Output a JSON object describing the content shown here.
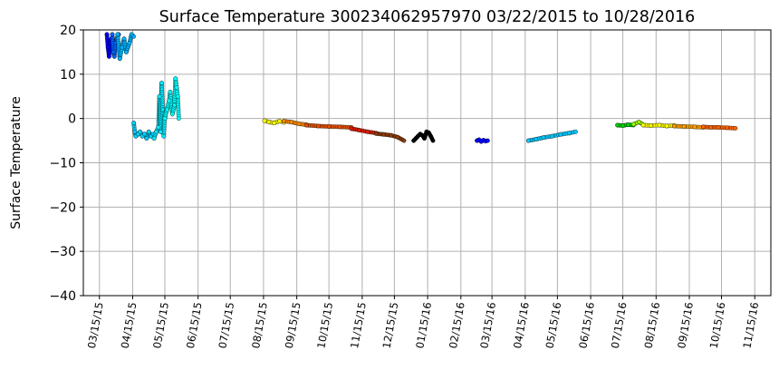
{
  "chart_data": {
    "type": "scatter",
    "title": "Surface Temperature 300234062957970  03/22/2015 to 10/28/2016",
    "xlabel": "",
    "ylabel": "Surface Temperature",
    "xlim": [
      "2015-02-28",
      "2016-11-30"
    ],
    "ylim": [
      -40,
      20
    ],
    "yticks": [
      20,
      10,
      0,
      -10,
      -20,
      -30,
      -40
    ],
    "ytick_labels": [
      "20",
      "10",
      "0",
      "−10",
      "−20",
      "−30",
      "−40"
    ],
    "xticks": [
      "2015-03-15",
      "2015-04-15",
      "2015-05-15",
      "2015-06-15",
      "2015-07-15",
      "2015-08-15",
      "2015-09-15",
      "2015-10-15",
      "2015-11-15",
      "2015-12-15",
      "2016-01-15",
      "2016-02-15",
      "2016-03-15",
      "2016-04-15",
      "2016-05-15",
      "2016-06-15",
      "2016-07-15",
      "2016-08-15",
      "2016-09-15",
      "2016-10-15",
      "2016-11-15"
    ],
    "xtick_labels": [
      "03/15/15",
      "04/15/15",
      "05/15/15",
      "06/15/15",
      "07/15/15",
      "08/15/15",
      "09/15/15",
      "10/15/15",
      "11/15/15",
      "12/15/15",
      "01/15/16",
      "02/15/16",
      "03/15/16",
      "04/15/16",
      "05/15/16",
      "06/15/16",
      "07/15/16",
      "08/15/16",
      "09/15/16",
      "10/15/16",
      "11/15/16"
    ],
    "grid": true,
    "series": [
      {
        "color": "#0000ff",
        "points": [
          [
            "2015-03-22",
            19
          ],
          [
            "2015-03-23",
            16
          ],
          [
            "2015-03-24",
            14
          ],
          [
            "2015-03-25",
            17
          ],
          [
            "2015-03-26",
            18
          ]
        ]
      },
      {
        "color": "#0064ff",
        "points": [
          [
            "2015-03-27",
            19
          ],
          [
            "2015-03-28",
            15
          ],
          [
            "2015-03-29",
            14
          ],
          [
            "2015-03-30",
            17
          ],
          [
            "2015-03-31",
            18
          ],
          [
            "2015-04-02",
            19
          ]
        ]
      },
      {
        "color": "#00b4ff",
        "points": [
          [
            "2015-04-01",
            19
          ],
          [
            "2015-04-03",
            13.5
          ],
          [
            "2015-04-05",
            16
          ],
          [
            "2015-04-07",
            18
          ],
          [
            "2015-04-09",
            15
          ],
          [
            "2015-04-12",
            17
          ],
          [
            "2015-04-14",
            19
          ],
          [
            "2015-04-16",
            18.5
          ]
        ]
      },
      {
        "color": "#00d2ff",
        "points": [
          [
            "2015-04-16",
            -1
          ],
          [
            "2015-04-17",
            -3
          ],
          [
            "2015-04-18",
            -4
          ],
          [
            "2015-04-20",
            -3.5
          ],
          [
            "2015-04-22",
            -3
          ],
          [
            "2015-04-24",
            -4
          ],
          [
            "2015-04-26",
            -3.5
          ],
          [
            "2015-04-28",
            -4.5
          ],
          [
            "2015-04-30",
            -3
          ],
          [
            "2015-05-02",
            -4
          ],
          [
            "2015-05-04",
            -3.5
          ]
        ]
      },
      {
        "color": "#00eaff",
        "points": [
          [
            "2015-05-05",
            -4.5
          ],
          [
            "2015-05-07",
            -3
          ],
          [
            "2015-05-09",
            -2
          ],
          [
            "2015-05-10",
            5
          ],
          [
            "2015-05-11",
            -3
          ],
          [
            "2015-05-12",
            8
          ],
          [
            "2015-05-13",
            2
          ],
          [
            "2015-05-14",
            -4
          ],
          [
            "2015-05-15",
            1
          ]
        ]
      },
      {
        "color": "#00ffff",
        "points": [
          [
            "2015-05-15",
            0
          ],
          [
            "2015-05-17",
            2
          ],
          [
            "2015-05-19",
            4
          ],
          [
            "2015-05-20",
            6
          ],
          [
            "2015-05-22",
            1
          ],
          [
            "2015-05-24",
            3
          ],
          [
            "2015-05-25",
            9
          ],
          [
            "2015-05-26",
            7
          ],
          [
            "2015-05-27",
            5
          ],
          [
            "2015-05-28",
            0
          ]
        ]
      },
      {
        "color": "#ffff00",
        "points": [
          [
            "2015-08-16",
            -0.5
          ],
          [
            "2015-08-20",
            -0.8
          ],
          [
            "2015-08-25",
            -1
          ],
          [
            "2015-08-30",
            -0.6
          ],
          [
            "2015-09-03",
            -0.9
          ]
        ]
      },
      {
        "color": "#ff8c00",
        "points": [
          [
            "2015-09-03",
            -0.6
          ],
          [
            "2015-09-10",
            -0.8
          ],
          [
            "2015-09-17",
            -1.2
          ],
          [
            "2015-09-24",
            -1.4
          ]
        ]
      },
      {
        "color": "#e65000",
        "points": [
          [
            "2015-09-24",
            -1.5
          ],
          [
            "2015-10-05",
            -1.7
          ],
          [
            "2015-10-15",
            -1.8
          ],
          [
            "2015-10-25",
            -1.9
          ],
          [
            "2015-11-05",
            -2
          ]
        ]
      },
      {
        "color": "#dc1e00",
        "points": [
          [
            "2015-11-05",
            -2.3
          ],
          [
            "2015-11-12",
            -2.6
          ],
          [
            "2015-11-20",
            -3
          ],
          [
            "2015-11-28",
            -3.3
          ]
        ]
      },
      {
        "color": "#8b3c0a",
        "points": [
          [
            "2015-11-28",
            -3.4
          ],
          [
            "2015-12-05",
            -3.6
          ],
          [
            "2015-12-12",
            -3.8
          ],
          [
            "2015-12-18",
            -4.2
          ],
          [
            "2015-12-24",
            -5
          ]
        ]
      },
      {
        "color": "#000000",
        "points": [
          [
            "2016-01-02",
            -5
          ],
          [
            "2016-01-04",
            -4.5
          ],
          [
            "2016-01-06",
            -4
          ],
          [
            "2016-01-08",
            -3.5
          ],
          [
            "2016-01-10",
            -3.8
          ],
          [
            "2016-01-12",
            -4.5
          ],
          [
            "2016-01-14",
            -3
          ],
          [
            "2016-01-16",
            -3.2
          ],
          [
            "2016-01-18",
            -4
          ],
          [
            "2016-01-20",
            -5
          ]
        ]
      },
      {
        "color": "#0000ff",
        "points": [
          [
            "2016-03-01",
            -5
          ],
          [
            "2016-03-03",
            -4.8
          ],
          [
            "2016-03-05",
            -5.2
          ],
          [
            "2016-03-07",
            -4.9
          ],
          [
            "2016-03-09",
            -5.1
          ],
          [
            "2016-03-11",
            -5
          ]
        ]
      },
      {
        "color": "#00c8ff",
        "points": [
          [
            "2016-04-18",
            -5
          ],
          [
            "2016-04-25",
            -4.7
          ],
          [
            "2016-05-02",
            -4.3
          ],
          [
            "2016-05-10",
            -4
          ],
          [
            "2016-05-18",
            -3.6
          ],
          [
            "2016-05-26",
            -3.3
          ],
          [
            "2016-06-01",
            -3
          ]
        ]
      },
      {
        "color": "#00d200",
        "points": [
          [
            "2016-07-10",
            -1.5
          ],
          [
            "2016-07-15",
            -1.6
          ],
          [
            "2016-07-20",
            -1.4
          ],
          [
            "2016-07-25",
            -1.5
          ]
        ]
      },
      {
        "color": "#9bff00",
        "points": [
          [
            "2016-07-25",
            -1.3
          ],
          [
            "2016-07-30",
            -0.8
          ],
          [
            "2016-08-02",
            -1.2
          ]
        ]
      },
      {
        "color": "#ffff00",
        "points": [
          [
            "2016-08-03",
            -1.5
          ],
          [
            "2016-08-10",
            -1.6
          ],
          [
            "2016-08-18",
            -1.5
          ],
          [
            "2016-08-25",
            -1.7
          ],
          [
            "2016-09-01",
            -1.6
          ]
        ]
      },
      {
        "color": "#ffa000",
        "points": [
          [
            "2016-09-01",
            -1.7
          ],
          [
            "2016-09-10",
            -1.8
          ],
          [
            "2016-09-20",
            -1.9
          ],
          [
            "2016-09-28",
            -2
          ]
        ]
      },
      {
        "color": "#ff6400",
        "points": [
          [
            "2016-09-28",
            -1.9
          ],
          [
            "2016-10-05",
            -2
          ],
          [
            "2016-10-12",
            -2
          ],
          [
            "2016-10-20",
            -2.1
          ],
          [
            "2016-10-28",
            -2.2
          ]
        ]
      }
    ]
  }
}
